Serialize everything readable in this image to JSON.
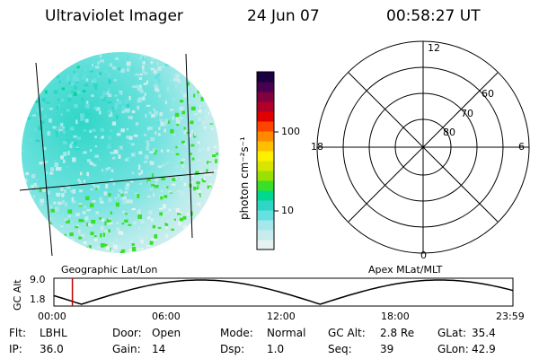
{
  "header": {
    "instrument": "Ultraviolet Imager",
    "date": "24 Jun 07",
    "time": "00:58:27 UT"
  },
  "image_panel": {
    "caption": "Geographic Lat/Lon"
  },
  "colorbar": {
    "unit_label": "photon cm⁻²s⁻¹",
    "ticks": [
      "100",
      "10"
    ],
    "scale": "log",
    "colors": [
      "#e6f2f2",
      "#c8ecec",
      "#a6e8ea",
      "#66e0e0",
      "#2fd6c8",
      "#00d890",
      "#38e028",
      "#9ae000",
      "#d6e600",
      "#fff000",
      "#ffbf00",
      "#ff8a00",
      "#ff4400",
      "#e00000",
      "#b0002a",
      "#800040",
      "#4a0050",
      "#1a0040"
    ]
  },
  "polar_panel": {
    "caption": "Apex MLat/MLT",
    "mlt_labels": {
      "top": "12",
      "bottom": "0",
      "left": "18",
      "right": "6"
    },
    "lat_labels": [
      "60",
      "70",
      "80"
    ]
  },
  "altitude_plot": {
    "ylabel": "GC Alt",
    "yticks": [
      "9.0",
      "1.8"
    ],
    "xticks": [
      "00:00",
      "06:00",
      "12:00",
      "18:00",
      "23:59"
    ],
    "marker_time": "00:58"
  },
  "info": {
    "rows": [
      [
        {
          "label": "Flt:",
          "value": "LBHL"
        },
        {
          "label": "Door:",
          "value": "Open"
        },
        {
          "label": "Mode:",
          "value": "Normal"
        },
        {
          "label": "GC Alt:",
          "value": "2.8 Re"
        },
        {
          "label": "GLat:",
          "value": "35.4"
        }
      ],
      [
        {
          "label": "IP:",
          "value": "36.0"
        },
        {
          "label": "Gain:",
          "value": "14"
        },
        {
          "label": "Dsp:",
          "value": "1.0"
        },
        {
          "label": "Seq:",
          "value": "39"
        },
        {
          "label": "GLon:",
          "value": "42.9"
        }
      ]
    ]
  }
}
